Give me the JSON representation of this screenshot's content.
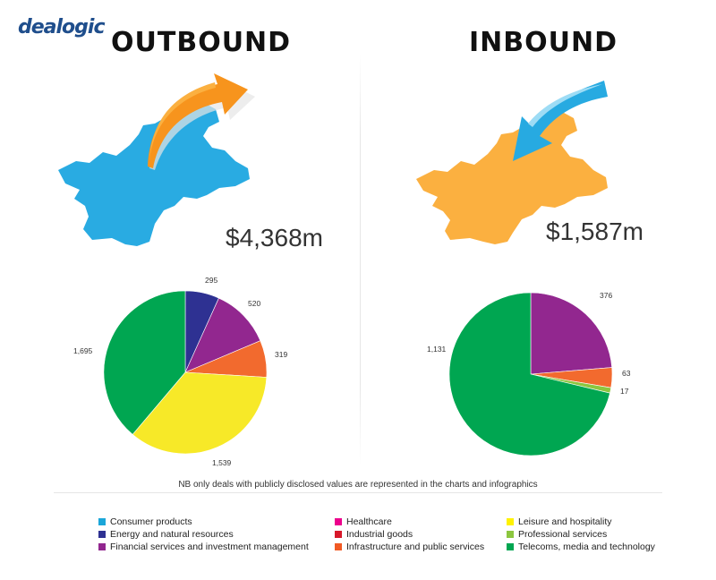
{
  "logo": "dealogic",
  "outbound": {
    "title": "OUTBOUND",
    "amount": "$4,368m"
  },
  "inbound": {
    "title": "INBOUND",
    "amount": "$1,587m"
  },
  "note": "NB only deals with publicly disclosed values are represented in the charts and infographics",
  "colors": {
    "map_outbound": "#29abe2",
    "map_inbound": "#fbb040",
    "arrow_outbound": "#f7941d",
    "arrow_inbound": "#27aae1"
  },
  "legend": [
    {
      "name": "Consumer products",
      "color": "#1ba6d9"
    },
    {
      "name": "Energy and natural resources",
      "color": "#2e3192"
    },
    {
      "name": "Financial services and investment management",
      "color": "#92278f"
    },
    {
      "name": "Healthcare",
      "color": "#ec008c"
    },
    {
      "name": "Industrial goods",
      "color": "#d7182a"
    },
    {
      "name": "Infrastructure and public services",
      "color": "#f15a24"
    },
    {
      "name": "Leisure and hospitality",
      "color": "#fff200"
    },
    {
      "name": "Professional services",
      "color": "#8cc63f"
    },
    {
      "name": "Telecoms, media and technology",
      "color": "#00a651"
    }
  ],
  "chart_data": [
    {
      "type": "pie",
      "title": "",
      "slices": [
        {
          "category": "Energy and natural resources",
          "value": 295,
          "label": "295",
          "color": "#2e3192"
        },
        {
          "category": "Financial services and investment management",
          "value": 520,
          "label": "520",
          "color": "#92278f"
        },
        {
          "category": "Infrastructure and public services",
          "value": 319,
          "label": "319",
          "color": "#f26a2e"
        },
        {
          "category": "Leisure and hospitality",
          "value": 1539,
          "label": "1,539",
          "color": "#f7e928"
        },
        {
          "category": "Telecoms, media and technology",
          "value": 1695,
          "label": "1,695",
          "color": "#00a651"
        }
      ]
    },
    {
      "type": "pie",
      "title": "",
      "slices": [
        {
          "category": "Financial services and investment management",
          "value": 376,
          "label": "376",
          "color": "#92278f"
        },
        {
          "category": "Infrastructure and public services",
          "value": 63,
          "label": "63",
          "color": "#f26a2e"
        },
        {
          "category": "Professional services",
          "value": 17,
          "label": "17",
          "color": "#8cc63f"
        },
        {
          "category": "Telecoms, media and technology",
          "value": 1131,
          "label": "1,131",
          "color": "#00a651"
        }
      ]
    }
  ]
}
